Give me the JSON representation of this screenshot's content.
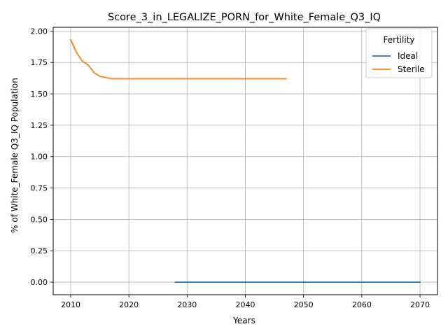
{
  "chart_data": {
    "type": "line",
    "title": "Score_3_in_LEGALIZE_PORN_for_White_Female_Q3_IQ",
    "xlabel": "Years",
    "ylabel": "% of White_Female Q3_IQ Population",
    "xlim": [
      2007,
      2073
    ],
    "ylim": [
      -0.1,
      2.03
    ],
    "xticks": [
      2010,
      2020,
      2030,
      2040,
      2050,
      2060,
      2070
    ],
    "yticks": [
      0.0,
      0.25,
      0.5,
      0.75,
      1.0,
      1.25,
      1.5,
      1.75,
      2.0
    ],
    "ytick_labels": [
      "0.00",
      "0.25",
      "0.50",
      "0.75",
      "1.00",
      "1.25",
      "1.50",
      "1.75",
      "2.00"
    ],
    "grid": true,
    "legend": {
      "title": "Fertility",
      "placement": "top-right"
    },
    "series": [
      {
        "name": "Ideal",
        "color": "#1f77b4",
        "x": [
          2028,
          2030,
          2035,
          2040,
          2045,
          2050,
          2055,
          2060,
          2065,
          2070
        ],
        "y": [
          0.0,
          0.0,
          0.0,
          0.0,
          0.0,
          0.0,
          0.0,
          0.0,
          0.0,
          0.0
        ]
      },
      {
        "name": "Sterile",
        "color": "#ff7f0e",
        "x": [
          2010,
          2011,
          2012,
          2013,
          2014,
          2015,
          2016,
          2017,
          2018,
          2020,
          2025,
          2030,
          2035,
          2040,
          2045,
          2047
        ],
        "y": [
          1.93,
          1.83,
          1.76,
          1.73,
          1.67,
          1.64,
          1.63,
          1.62,
          1.62,
          1.62,
          1.62,
          1.62,
          1.62,
          1.62,
          1.62,
          1.62
        ]
      }
    ]
  }
}
